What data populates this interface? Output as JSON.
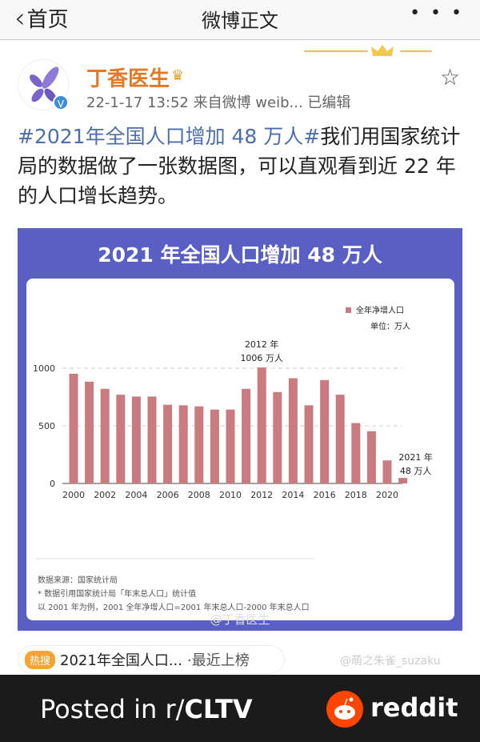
{
  "nav": {
    "back_label": "首页",
    "title": "微博正文",
    "more": "• • •"
  },
  "post": {
    "username": "丁香医生",
    "meta": "22-1-17 13:52  来自微博 weib...  已编辑",
    "hashtag": "#2021年全国人口增加 48 万人#",
    "text": "我们用国家统计局的数据做了一张数据图，可以直观看到近 22 年的人口增长趋势。"
  },
  "image": {
    "title": "2021 年全国人口增加 48 万人",
    "source_lines": [
      "数据来源：国家统计局",
      "* 数据引用国家统计局「年末总人口」统计值",
      "以 2001 年为例，2001 全年净增人口=2001 年末总人口-2000 年末总人口"
    ],
    "watermark": "@丁香医生"
  },
  "chart_data": {
    "type": "bar",
    "title": "2021 年全国人口增加 48 万人",
    "legend": "全年净增人口",
    "unit": "单位：万人",
    "legend_position": "top-right",
    "bar_color": "#c97b80",
    "categories": [
      "2000",
      "2001",
      "2002",
      "2003",
      "2004",
      "2005",
      "2006",
      "2007",
      "2008",
      "2009",
      "2010",
      "2011",
      "2012",
      "2013",
      "2014",
      "2015",
      "2016",
      "2017",
      "2018",
      "2019",
      "2020",
      "2021"
    ],
    "x_tick_labels": [
      "2000",
      "2002",
      "2004",
      "2006",
      "2008",
      "2010",
      "2012",
      "2014",
      "2016",
      "2018",
      "2020"
    ],
    "values": [
      952,
      883,
      821,
      770,
      754,
      754,
      683,
      678,
      669,
      641,
      641,
      821,
      1006,
      793,
      913,
      678,
      897,
      770,
      524,
      453,
      200,
      48
    ],
    "y_ticks": [
      "0",
      "500",
      "1000"
    ],
    "ylim": [
      0,
      1000
    ],
    "grid": "dashed horizontal",
    "annotations": [
      {
        "line1": "2012 年",
        "line2": "1006 万人"
      },
      {
        "line1": "2021 年",
        "line2": "48 万人"
      }
    ]
  },
  "hot_search": {
    "badge": "热搜",
    "text": "2021年全国人口...",
    "suffix": "·最近上榜"
  },
  "weibo_watermark": "@萌之朱雀_suzaku",
  "footer": {
    "posted": "Posted in r/",
    "sub": "CLTV",
    "brand": "reddit"
  }
}
